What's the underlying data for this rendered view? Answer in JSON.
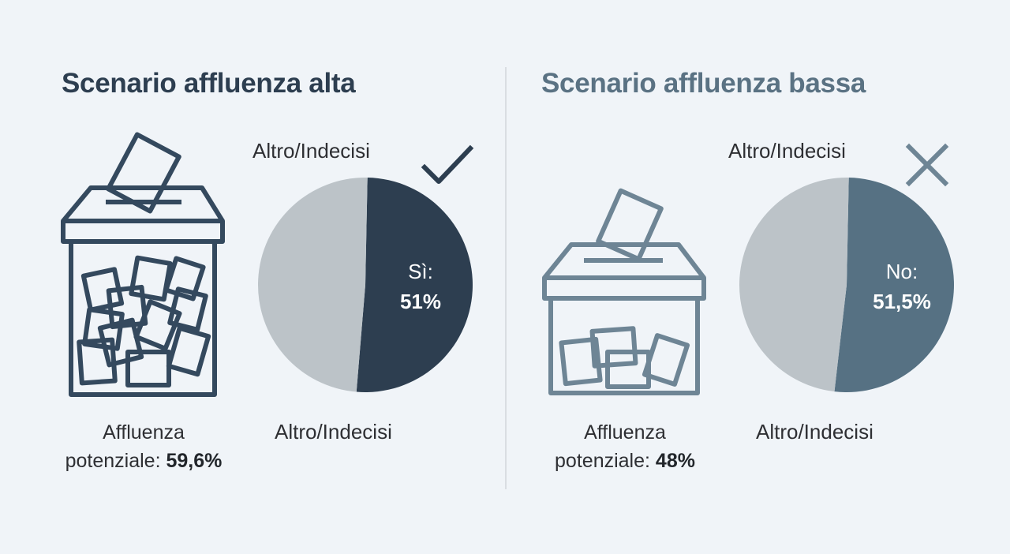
{
  "colors": {
    "background": "#f0f4f8",
    "neutral_slice": "#bcc3c8",
    "yes_slice": "#2d3e50",
    "no_slice": "#567183",
    "icon_stroke_dark": "#34495e",
    "icon_stroke_light": "#6e8595"
  },
  "chart_data": [
    {
      "type": "pie",
      "title": "Scenario affluenza alta",
      "slices": [
        {
          "label": "Sì:",
          "value": 51,
          "display": "51%"
        },
        {
          "label": "Altro/Indecisi",
          "value": 49
        }
      ],
      "slice_labels": [
        "Altro/Indecisi",
        "Altro/Indecisi"
      ],
      "turnout_label": "Affluenza",
      "turnout_prefix": "potenziale:",
      "turnout_value": "59,6%",
      "outcome_icon": "check-icon",
      "illustration_icon": "ballot-box-full-icon"
    },
    {
      "type": "pie",
      "title": "Scenario affluenza bassa",
      "slices": [
        {
          "label": "No:",
          "value": 51.5,
          "display": "51,5%"
        },
        {
          "label": "Altro/Indecisi",
          "value": 48.5
        }
      ],
      "slice_labels": [
        "Altro/Indecisi",
        "Altro/Indecisi"
      ],
      "turnout_label": "Affluenza",
      "turnout_prefix": "potenziale:",
      "turnout_value": "48%",
      "outcome_icon": "cross-icon",
      "illustration_icon": "ballot-box-low-icon"
    }
  ]
}
